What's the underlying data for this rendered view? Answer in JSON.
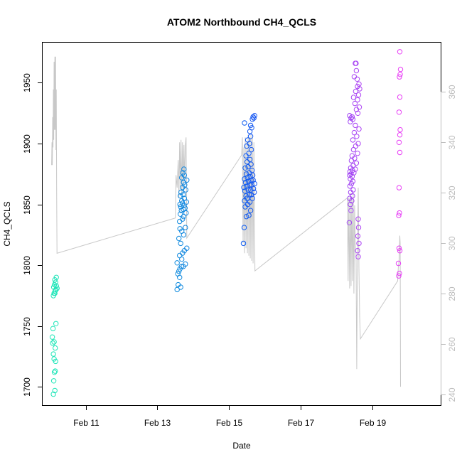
{
  "chart_data": {
    "type": "scatter",
    "title": "ATOM2 Northbound CH4_QCLS",
    "xlabel": "Date",
    "ylabel": "CH4_QCLS",
    "x_ticks": [
      "Feb 11",
      "Feb 13",
      "Feb 15",
      "Feb 17",
      "Feb 19"
    ],
    "x_tick_values": [
      11,
      13,
      15,
      17,
      19
    ],
    "xlim": [
      9.8,
      20.9
    ],
    "ylim": [
      1685,
      1983
    ],
    "y_ticks": [
      1700,
      1750,
      1800,
      1850,
      1900,
      1950
    ],
    "y2lim": [
      235.7,
      379.6
    ],
    "y2_ticks": [
      240,
      260,
      280,
      300,
      320,
      340,
      360
    ],
    "grid": false,
    "legend": "none",
    "color_gradient": [
      "#1de9b6",
      "#0b5cf2",
      "#ea3df5"
    ],
    "secondary_series_color": "#c8c8c8",
    "series": [
      {
        "axis": "left",
        "points": [
          [
            10.1,
            1694
          ],
          [
            10.14,
            1697
          ],
          [
            10.11,
            1705
          ],
          [
            10.13,
            1712
          ],
          [
            10.15,
            1713
          ],
          [
            10.12,
            1723
          ],
          [
            10.16,
            1721
          ],
          [
            10.1,
            1727
          ],
          [
            10.15,
            1732
          ],
          [
            10.08,
            1736
          ],
          [
            10.12,
            1737
          ],
          [
            10.07,
            1741
          ],
          [
            10.09,
            1748
          ],
          [
            10.17,
            1752
          ],
          [
            10.1,
            1775
          ],
          [
            10.12,
            1777
          ],
          [
            10.14,
            1777
          ],
          [
            10.15,
            1779
          ],
          [
            10.17,
            1780
          ],
          [
            10.2,
            1781
          ],
          [
            10.11,
            1782
          ],
          [
            10.18,
            1783
          ],
          [
            10.13,
            1784
          ],
          [
            10.16,
            1786
          ],
          [
            10.14,
            1788
          ],
          [
            10.18,
            1790
          ],
          [
            13.55,
            1780
          ],
          [
            13.58,
            1784
          ],
          [
            13.62,
            1790
          ],
          [
            13.65,
            1782
          ],
          [
            13.57,
            1793
          ],
          [
            13.6,
            1795
          ],
          [
            13.63,
            1797
          ],
          [
            13.67,
            1799
          ],
          [
            13.72,
            1799
          ],
          [
            13.78,
            1801
          ],
          [
            13.55,
            1802
          ],
          [
            13.68,
            1805
          ],
          [
            13.62,
            1808
          ],
          [
            13.7,
            1810
          ],
          [
            13.75,
            1812
          ],
          [
            13.82,
            1814
          ],
          [
            13.65,
            1818
          ],
          [
            13.6,
            1822
          ],
          [
            13.73,
            1825
          ],
          [
            13.68,
            1828
          ],
          [
            13.63,
            1830
          ],
          [
            13.78,
            1831
          ],
          [
            13.62,
            1836
          ],
          [
            13.7,
            1838
          ],
          [
            13.73,
            1840
          ],
          [
            13.64,
            1842
          ],
          [
            13.8,
            1843
          ],
          [
            13.67,
            1845
          ],
          [
            13.72,
            1846
          ],
          [
            13.77,
            1847
          ],
          [
            13.65,
            1848
          ],
          [
            13.74,
            1849
          ],
          [
            13.63,
            1850
          ],
          [
            13.7,
            1851
          ],
          [
            13.81,
            1852
          ],
          [
            13.68,
            1853
          ],
          [
            13.75,
            1855
          ],
          [
            13.64,
            1857
          ],
          [
            13.72,
            1858
          ],
          [
            13.66,
            1860
          ],
          [
            13.79,
            1862
          ],
          [
            13.7,
            1864
          ],
          [
            13.76,
            1866
          ],
          [
            13.73,
            1868
          ],
          [
            13.82,
            1870
          ],
          [
            13.68,
            1872
          ],
          [
            13.75,
            1874
          ],
          [
            13.71,
            1876
          ],
          [
            13.74,
            1879
          ],
          [
            15.4,
            1818
          ],
          [
            15.42,
            1831
          ],
          [
            15.48,
            1840
          ],
          [
            15.55,
            1841
          ],
          [
            15.6,
            1845
          ],
          [
            15.45,
            1848
          ],
          [
            15.52,
            1850
          ],
          [
            15.58,
            1852
          ],
          [
            15.43,
            1853
          ],
          [
            15.5,
            1855
          ],
          [
            15.65,
            1855
          ],
          [
            15.47,
            1857
          ],
          [
            15.56,
            1858
          ],
          [
            15.62,
            1858
          ],
          [
            15.7,
            1860
          ],
          [
            15.44,
            1861
          ],
          [
            15.53,
            1862
          ],
          [
            15.6,
            1862
          ],
          [
            15.68,
            1863
          ],
          [
            15.41,
            1864
          ],
          [
            15.49,
            1865
          ],
          [
            15.57,
            1866
          ],
          [
            15.63,
            1866
          ],
          [
            15.71,
            1867
          ],
          [
            15.46,
            1868
          ],
          [
            15.54,
            1869
          ],
          [
            15.61,
            1870
          ],
          [
            15.67,
            1870
          ],
          [
            15.43,
            1871
          ],
          [
            15.51,
            1872
          ],
          [
            15.59,
            1873
          ],
          [
            15.66,
            1874
          ],
          [
            15.48,
            1875
          ],
          [
            15.56,
            1876
          ],
          [
            15.64,
            1878
          ],
          [
            15.45,
            1880
          ],
          [
            15.53,
            1881
          ],
          [
            15.61,
            1883
          ],
          [
            15.5,
            1885
          ],
          [
            15.58,
            1887
          ],
          [
            15.47,
            1890
          ],
          [
            15.55,
            1892
          ],
          [
            15.62,
            1895
          ],
          [
            15.49,
            1898
          ],
          [
            15.57,
            1900
          ],
          [
            15.52,
            1903
          ],
          [
            15.6,
            1906
          ],
          [
            15.58,
            1910
          ],
          [
            15.63,
            1913
          ],
          [
            15.6,
            1915
          ],
          [
            15.43,
            1917
          ],
          [
            15.65,
            1920
          ],
          [
            15.69,
            1921
          ],
          [
            15.67,
            1922
          ],
          [
            15.71,
            1923
          ],
          [
            18.35,
            1835
          ],
          [
            18.4,
            1845
          ],
          [
            18.38,
            1850
          ],
          [
            18.42,
            1853
          ],
          [
            18.36,
            1855
          ],
          [
            18.44,
            1857
          ],
          [
            18.39,
            1860
          ],
          [
            18.46,
            1862
          ],
          [
            18.37,
            1865
          ],
          [
            18.41,
            1867
          ],
          [
            18.45,
            1869
          ],
          [
            18.38,
            1871
          ],
          [
            18.43,
            1873
          ],
          [
            18.36,
            1874
          ],
          [
            18.4,
            1875
          ],
          [
            18.48,
            1876
          ],
          [
            18.37,
            1877
          ],
          [
            18.44,
            1878
          ],
          [
            18.52,
            1879
          ],
          [
            18.39,
            1880
          ],
          [
            18.46,
            1882
          ],
          [
            18.55,
            1884
          ],
          [
            18.41,
            1886
          ],
          [
            18.5,
            1888
          ],
          [
            18.43,
            1890
          ],
          [
            18.58,
            1892
          ],
          [
            18.47,
            1895
          ],
          [
            18.53,
            1898
          ],
          [
            18.6,
            1900
          ],
          [
            18.45,
            1903
          ],
          [
            18.56,
            1906
          ],
          [
            18.49,
            1909
          ],
          [
            18.62,
            1912
          ],
          [
            18.52,
            1915
          ],
          [
            18.38,
            1918
          ],
          [
            18.45,
            1920
          ],
          [
            18.4,
            1921
          ],
          [
            18.43,
            1922
          ],
          [
            18.36,
            1923
          ],
          [
            18.59,
            1925
          ],
          [
            18.55,
            1928
          ],
          [
            18.63,
            1930
          ],
          [
            18.51,
            1933
          ],
          [
            18.58,
            1936
          ],
          [
            18.47,
            1938
          ],
          [
            18.61,
            1940
          ],
          [
            18.53,
            1943
          ],
          [
            18.64,
            1945
          ],
          [
            18.58,
            1947
          ],
          [
            18.62,
            1949
          ],
          [
            18.57,
            1953
          ],
          [
            18.49,
            1955
          ],
          [
            18.55,
            1960
          ],
          [
            18.52,
            1966
          ],
          [
            18.54,
            1966
          ],
          [
            18.6,
            1807
          ],
          [
            18.58,
            1812
          ],
          [
            18.62,
            1818
          ],
          [
            18.59,
            1824
          ],
          [
            18.61,
            1831
          ],
          [
            18.6,
            1838
          ]
        ]
      },
      {
        "axis": "right",
        "points": [
          [
            19.73,
            287
          ],
          [
            19.75,
            288
          ],
          [
            19.72,
            292
          ],
          [
            19.76,
            297
          ],
          [
            19.74,
            298
          ],
          [
            19.73,
            311
          ],
          [
            19.75,
            312
          ],
          [
            19.74,
            322
          ],
          [
            19.76,
            336
          ],
          [
            19.74,
            340
          ],
          [
            19.76,
            343
          ],
          [
            19.77,
            345
          ],
          [
            19.74,
            352
          ],
          [
            19.76,
            358
          ],
          [
            19.75,
            366
          ],
          [
            19.77,
            367
          ],
          [
            19.78,
            369
          ],
          [
            19.76,
            376
          ]
        ]
      }
    ],
    "secondary_trace": {
      "axis": "right",
      "points": [
        [
          10.05,
          331
        ],
        [
          10.06,
          340
        ],
        [
          10.07,
          331
        ],
        [
          10.08,
          350
        ],
        [
          10.09,
          338
        ],
        [
          10.1,
          361
        ],
        [
          10.11,
          341
        ],
        [
          10.12,
          372
        ],
        [
          10.13,
          345
        ],
        [
          10.14,
          374
        ],
        [
          10.15,
          345
        ],
        [
          10.16,
          374
        ],
        [
          10.17,
          337
        ],
        [
          10.18,
          361
        ],
        [
          10.19,
          321
        ],
        [
          10.2,
          296
        ],
        [
          13.5,
          310
        ],
        [
          13.52,
          327
        ],
        [
          13.55,
          322
        ],
        [
          13.58,
          333
        ],
        [
          13.6,
          318
        ],
        [
          13.62,
          340
        ],
        [
          13.64,
          322
        ],
        [
          13.66,
          341
        ],
        [
          13.68,
          320
        ],
        [
          13.7,
          340
        ],
        [
          13.72,
          320
        ],
        [
          13.74,
          339
        ],
        [
          13.76,
          325
        ],
        [
          13.78,
          339
        ],
        [
          13.8,
          342
        ],
        [
          13.82,
          302
        ],
        [
          15.35,
          335
        ],
        [
          15.37,
          342
        ],
        [
          15.39,
          300
        ],
        [
          15.41,
          338
        ],
        [
          15.43,
          296
        ],
        [
          15.45,
          342
        ],
        [
          15.47,
          298
        ],
        [
          15.49,
          340
        ],
        [
          15.51,
          296
        ],
        [
          15.53,
          343
        ],
        [
          15.55,
          295
        ],
        [
          15.57,
          342
        ],
        [
          15.59,
          294
        ],
        [
          15.61,
          343
        ],
        [
          15.63,
          293
        ],
        [
          15.65,
          342
        ],
        [
          15.67,
          292
        ],
        [
          15.69,
          340
        ],
        [
          15.72,
          289
        ],
        [
          18.3,
          318
        ],
        [
          18.32,
          285
        ],
        [
          18.34,
          318
        ],
        [
          18.36,
          282
        ],
        [
          18.38,
          320
        ],
        [
          18.4,
          283
        ],
        [
          18.42,
          318
        ],
        [
          18.44,
          285
        ],
        [
          18.46,
          320
        ],
        [
          18.48,
          280
        ],
        [
          18.5,
          315
        ],
        [
          18.52,
          300
        ],
        [
          18.54,
          295
        ],
        [
          18.56,
          250
        ],
        [
          18.58,
          300
        ],
        [
          18.6,
          322
        ],
        [
          18.62,
          290
        ],
        [
          18.64,
          271
        ],
        [
          18.66,
          262
        ],
        [
          19.7,
          285
        ],
        [
          19.72,
          291
        ],
        [
          19.74,
          293
        ],
        [
          19.76,
          303
        ],
        [
          19.77,
          300
        ],
        [
          19.78,
          243
        ]
      ]
    }
  }
}
